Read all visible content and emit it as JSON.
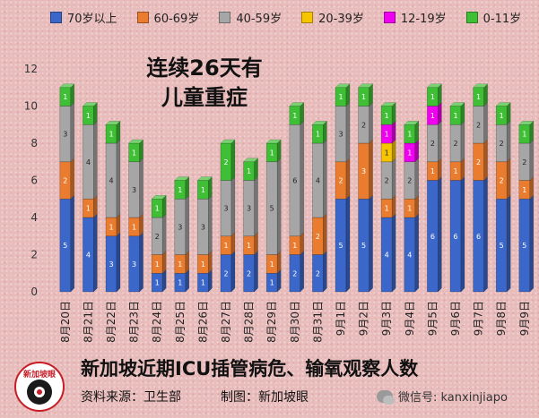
{
  "chart_data": {
    "type": "bar",
    "stacked": true,
    "categories": [
      "8月20日",
      "8月21日",
      "8月22日",
      "8月23日",
      "8月24日",
      "8月25日",
      "8月26日",
      "8月27日",
      "8月28日",
      "8月29日",
      "8月30日",
      "8月31日",
      "9月1日",
      "9月2日",
      "9月3日",
      "9月4日",
      "9月5日",
      "9月6日",
      "9月7日",
      "9月8日",
      "9月9日"
    ],
    "series": [
      {
        "name": "70岁以上",
        "color": "#3a67c9",
        "values": [
          5,
          4,
          3,
          3,
          1,
          1,
          1,
          2,
          2,
          1,
          2,
          2,
          5,
          5,
          4,
          4,
          6,
          6,
          6,
          5,
          5
        ]
      },
      {
        "name": "60-69岁",
        "color": "#ea7c2f",
        "values": [
          2,
          1,
          1,
          1,
          1,
          1,
          1,
          1,
          1,
          1,
          1,
          2,
          2,
          3,
          1,
          1,
          1,
          1,
          2,
          2,
          1
        ]
      },
      {
        "name": "40-59岁",
        "color": "#a6a6a6",
        "values": [
          3,
          4,
          4,
          3,
          2,
          3,
          3,
          3,
          3,
          5,
          6,
          4,
          3,
          2,
          2,
          2,
          2,
          2,
          2,
          2,
          2
        ]
      },
      {
        "name": "20-39岁",
        "color": "#f7c400",
        "values": [
          0,
          0,
          0,
          0,
          0,
          0,
          0,
          0,
          0,
          0,
          0,
          0,
          0,
          0,
          1,
          0,
          0,
          0,
          0,
          0,
          0
        ]
      },
      {
        "name": "12-19岁",
        "color": "#f000f0",
        "values": [
          0,
          0,
          0,
          0,
          0,
          0,
          0,
          0,
          0,
          0,
          0,
          0,
          0,
          0,
          1,
          1,
          1,
          0,
          0,
          0,
          0
        ]
      },
      {
        "name": "0-11岁",
        "color": "#3fbf35",
        "values": [
          1,
          1,
          1,
          1,
          1,
          1,
          1,
          2,
          1,
          1,
          1,
          1,
          1,
          1,
          1,
          1,
          1,
          1,
          1,
          1,
          1
        ]
      }
    ],
    "ylim": [
      0,
      12
    ],
    "yticks": [
      "0",
      "2",
      "4",
      "6",
      "8",
      "10",
      "12"
    ],
    "annotation": [
      "连续26天有",
      "儿童重症"
    ],
    "title": "新加坡近期ICU插管病危、输氧观察人数",
    "legend_position": "top"
  },
  "footer": {
    "source": "资料来源：卫生部",
    "made_by": "制图：新加坡眼",
    "wechat": "微信号: kanxinjiapo",
    "logo_text": "新加坡眼"
  },
  "colors": {
    "background": "#e9bcbc",
    "logo_red": "#c71d25"
  }
}
